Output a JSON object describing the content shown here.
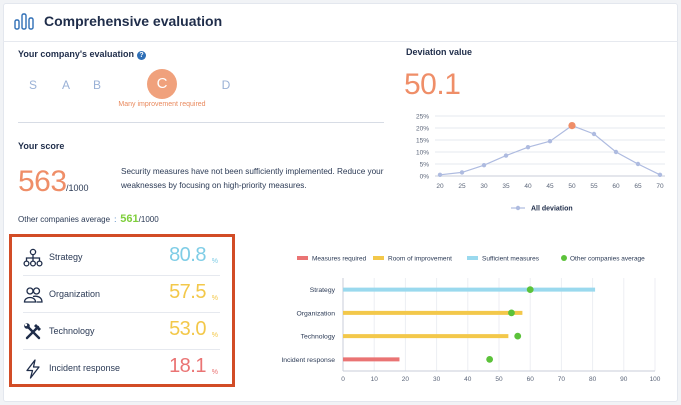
{
  "header": {
    "title": "Comprehensive evaluation"
  },
  "evaluation": {
    "title": "Your company's evaluation",
    "help_glyph": "?",
    "grades": [
      "S",
      "A",
      "B",
      "C",
      "D"
    ],
    "current_grade": "C",
    "current_description": "Many improvement required"
  },
  "score": {
    "title": "Your score",
    "value": "563",
    "max": "/1000",
    "message": "Security measures have not been sufficiently implemented. Reduce your weaknesses by focusing on high-priority measures.",
    "others_label": "Other companies average",
    "others_colon": ":",
    "others_value": "561",
    "others_max": "/1000"
  },
  "categories": [
    {
      "icon": "org-chart-icon",
      "name": "Strategy",
      "value": "80.8",
      "unit": "%",
      "color": "#7fcde6"
    },
    {
      "icon": "people-icon",
      "name": "Organization",
      "value": "57.5",
      "unit": "%",
      "color": "#f3c84a"
    },
    {
      "icon": "tools-icon",
      "name": "Technology",
      "value": "53.0",
      "unit": "%",
      "color": "#f3c84a"
    },
    {
      "icon": "lightning-icon",
      "name": "Incident response",
      "value": "18.1",
      "unit": "%",
      "color": "#ea7474"
    }
  ],
  "deviation": {
    "title": "Deviation value",
    "value": "50.1"
  },
  "colors": {
    "accent_orange": "#ef8e68",
    "measures_required": "#ea7474",
    "room_of_improvement": "#f3c84a",
    "sufficient": "#9ad9ee",
    "others": "#5cc23a",
    "highlight_border": "#d24c26"
  },
  "chart_data": [
    {
      "type": "line",
      "title": "Deviation value",
      "x": [
        20,
        25,
        30,
        35,
        40,
        45,
        50,
        55,
        60,
        65,
        70
      ],
      "series": [
        {
          "name": "All deviation",
          "values": [
            0.5,
            1.5,
            4.5,
            8.5,
            12,
            14.5,
            21,
            17.5,
            10,
            5,
            0.5
          ]
        }
      ],
      "highlight": {
        "x": 50,
        "y": 21
      },
      "ylim": [
        0,
        25
      ],
      "yticks": [
        "0%",
        "5%",
        "10%",
        "15%",
        "20%",
        "25%"
      ],
      "xticks": [
        "20",
        "25",
        "30",
        "35",
        "40",
        "45",
        "50",
        "55",
        "60",
        "65",
        "70"
      ],
      "legend": [
        "All deviation"
      ],
      "legend_position": "bottom"
    },
    {
      "type": "bar",
      "orientation": "horizontal",
      "categories": [
        "Strategy",
        "Organization",
        "Technology",
        "Incident response"
      ],
      "series": [
        {
          "name": "Score",
          "values": [
            80.8,
            57.5,
            53.0,
            18.1
          ]
        },
        {
          "name": "Other companies average",
          "values": [
            60,
            54,
            56,
            47
          ]
        }
      ],
      "bar_status": [
        "sufficient",
        "room",
        "room",
        "required"
      ],
      "legend": [
        "Measures required",
        "Room of improvement",
        "Sufficient measures",
        "Other companies average"
      ],
      "legend_position": "top",
      "xlim": [
        0,
        100
      ],
      "xticks": [
        "0",
        "10",
        "20",
        "30",
        "40",
        "50",
        "60",
        "70",
        "80",
        "90",
        "100"
      ]
    }
  ]
}
